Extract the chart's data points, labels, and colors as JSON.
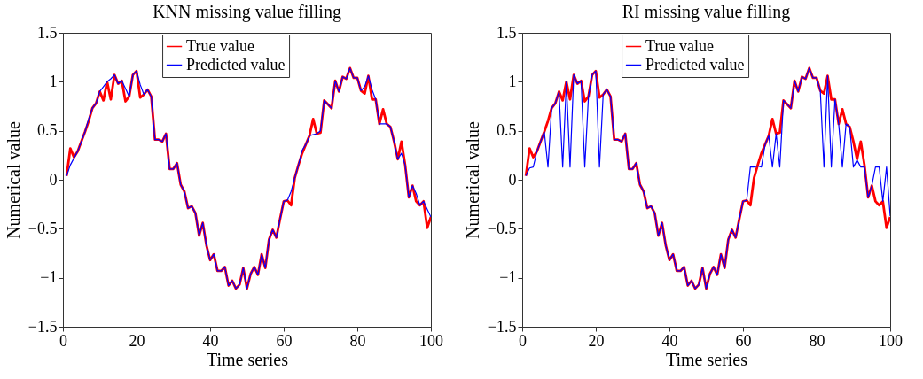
{
  "chart_data": [
    {
      "type": "line",
      "title": "KNN missing value filling",
      "xlabel": "Time series",
      "ylabel": "Numerical value",
      "xlim": [
        0,
        100
      ],
      "ylim": [
        -1.5,
        1.5
      ],
      "xticks": [
        0,
        20,
        40,
        60,
        80,
        100
      ],
      "yticks": [
        -1.5,
        -1,
        -0.5,
        0,
        0.5,
        1,
        1.5
      ],
      "legend": "top",
      "grid": false,
      "x": [
        1,
        2,
        3,
        4,
        5,
        6,
        7,
        8,
        9,
        10,
        11,
        12,
        13,
        14,
        15,
        16,
        17,
        18,
        19,
        20,
        21,
        22,
        23,
        24,
        25,
        26,
        27,
        28,
        29,
        30,
        31,
        32,
        33,
        34,
        35,
        36,
        37,
        38,
        39,
        40,
        41,
        42,
        43,
        44,
        45,
        46,
        47,
        48,
        49,
        50,
        51,
        52,
        53,
        54,
        55,
        56,
        57,
        58,
        59,
        60,
        61,
        62,
        63,
        64,
        65,
        66,
        67,
        68,
        69,
        70,
        71,
        72,
        73,
        74,
        75,
        76,
        77,
        78,
        79,
        80,
        81,
        82,
        83,
        84,
        85,
        86,
        87,
        88,
        89,
        90,
        91,
        92,
        93,
        94,
        95,
        96,
        97,
        98,
        99,
        100
      ],
      "series": [
        {
          "name": "True value",
          "color": "#ff0000",
          "values": [
            0.04,
            0.32,
            0.23,
            0.29,
            0.39,
            0.49,
            0.6,
            0.73,
            0.78,
            0.9,
            0.81,
            1.0,
            0.82,
            1.07,
            0.98,
            1.01,
            0.8,
            0.85,
            1.07,
            1.11,
            0.84,
            0.87,
            0.92,
            0.85,
            0.41,
            0.41,
            0.39,
            0.47,
            0.11,
            0.11,
            0.17,
            -0.05,
            -0.12,
            -0.29,
            -0.27,
            -0.34,
            -0.57,
            -0.44,
            -0.67,
            -0.82,
            -0.76,
            -0.93,
            -0.93,
            -0.89,
            -1.08,
            -1.03,
            -1.11,
            -1.07,
            -0.9,
            -1.11,
            -0.96,
            -0.89,
            -0.97,
            -0.76,
            -0.9,
            -0.61,
            -0.51,
            -0.59,
            -0.4,
            -0.22,
            -0.21,
            -0.26,
            0.02,
            0.15,
            0.27,
            0.36,
            0.45,
            0.62,
            0.47,
            0.48,
            0.81,
            0.77,
            0.73,
            1.01,
            0.9,
            1.05,
            1.03,
            1.14,
            1.04,
            1.04,
            0.91,
            0.88,
            1.06,
            0.82,
            0.82,
            0.57,
            0.72,
            0.57,
            0.54,
            0.39,
            0.21,
            0.39,
            0.15,
            -0.18,
            -0.06,
            -0.22,
            -0.26,
            -0.22,
            -0.49,
            -0.38
          ]
        },
        {
          "name": "Predicted value",
          "color": "#0000ff",
          "values": [
            0.04,
            0.15,
            0.22,
            0.29,
            0.39,
            0.49,
            0.62,
            0.73,
            0.78,
            0.9,
            0.95,
            1.0,
            1.03,
            1.07,
            0.98,
            1.01,
            0.93,
            0.85,
            1.07,
            1.11,
            0.97,
            0.87,
            0.92,
            0.85,
            0.41,
            0.41,
            0.39,
            0.47,
            0.11,
            0.11,
            0.17,
            -0.05,
            -0.12,
            -0.29,
            -0.27,
            -0.34,
            -0.57,
            -0.44,
            -0.67,
            -0.82,
            -0.76,
            -0.93,
            -0.93,
            -0.89,
            -1.08,
            -1.03,
            -1.11,
            -1.07,
            -0.9,
            -1.11,
            -0.96,
            -0.89,
            -0.97,
            -0.76,
            -0.9,
            -0.61,
            -0.51,
            -0.59,
            -0.4,
            -0.22,
            -0.21,
            -0.12,
            0.02,
            0.15,
            0.3,
            0.36,
            0.45,
            0.46,
            0.47,
            0.5,
            0.81,
            0.77,
            0.73,
            1.01,
            0.9,
            1.05,
            1.03,
            1.14,
            1.04,
            1.04,
            0.91,
            0.95,
            1.06,
            0.92,
            0.82,
            0.57,
            0.57,
            0.57,
            0.54,
            0.39,
            0.21,
            0.27,
            0.15,
            -0.18,
            -0.06,
            -0.14,
            -0.26,
            -0.22,
            -0.3,
            -0.38
          ]
        }
      ]
    },
    {
      "type": "line",
      "title": "RI missing value filling",
      "xlabel": "Time series",
      "ylabel": "Numerical value",
      "xlim": [
        0,
        100
      ],
      "ylim": [
        -1.5,
        1.5
      ],
      "xticks": [
        0,
        20,
        40,
        60,
        80,
        100
      ],
      "yticks": [
        -1.5,
        -1,
        -0.5,
        0,
        0.5,
        1,
        1.5
      ],
      "legend": "top",
      "grid": false,
      "x": [
        1,
        2,
        3,
        4,
        5,
        6,
        7,
        8,
        9,
        10,
        11,
        12,
        13,
        14,
        15,
        16,
        17,
        18,
        19,
        20,
        21,
        22,
        23,
        24,
        25,
        26,
        27,
        28,
        29,
        30,
        31,
        32,
        33,
        34,
        35,
        36,
        37,
        38,
        39,
        40,
        41,
        42,
        43,
        44,
        45,
        46,
        47,
        48,
        49,
        50,
        51,
        52,
        53,
        54,
        55,
        56,
        57,
        58,
        59,
        60,
        61,
        62,
        63,
        64,
        65,
        66,
        67,
        68,
        69,
        70,
        71,
        72,
        73,
        74,
        75,
        76,
        77,
        78,
        79,
        80,
        81,
        82,
        83,
        84,
        85,
        86,
        87,
        88,
        89,
        90,
        91,
        92,
        93,
        94,
        95,
        96,
        97,
        98,
        99,
        100
      ],
      "series": [
        {
          "name": "True value",
          "color": "#ff0000",
          "values": [
            0.04,
            0.32,
            0.23,
            0.29,
            0.39,
            0.49,
            0.6,
            0.73,
            0.78,
            0.9,
            0.81,
            1.0,
            0.82,
            1.07,
            0.98,
            1.01,
            0.8,
            0.85,
            1.07,
            1.11,
            0.84,
            0.87,
            0.92,
            0.85,
            0.41,
            0.41,
            0.39,
            0.47,
            0.11,
            0.11,
            0.17,
            -0.05,
            -0.12,
            -0.29,
            -0.27,
            -0.34,
            -0.57,
            -0.44,
            -0.67,
            -0.82,
            -0.76,
            -0.93,
            -0.93,
            -0.89,
            -1.08,
            -1.03,
            -1.11,
            -1.07,
            -0.9,
            -1.11,
            -0.96,
            -0.89,
            -0.97,
            -0.76,
            -0.9,
            -0.61,
            -0.51,
            -0.59,
            -0.4,
            -0.22,
            -0.21,
            -0.26,
            0.02,
            0.15,
            0.27,
            0.36,
            0.45,
            0.62,
            0.47,
            0.48,
            0.81,
            0.77,
            0.73,
            1.01,
            0.9,
            1.05,
            1.03,
            1.14,
            1.04,
            1.04,
            0.91,
            0.88,
            1.06,
            0.82,
            0.82,
            0.57,
            0.72,
            0.57,
            0.54,
            0.39,
            0.21,
            0.39,
            0.15,
            -0.18,
            -0.06,
            -0.22,
            -0.26,
            -0.22,
            -0.49,
            -0.38
          ]
        },
        {
          "name": "Predicted value",
          "color": "#0000ff",
          "values": [
            0.04,
            0.12,
            0.13,
            0.29,
            0.39,
            0.49,
            0.13,
            0.73,
            0.78,
            0.9,
            0.13,
            1.0,
            0.13,
            1.07,
            0.98,
            1.01,
            0.13,
            0.85,
            1.07,
            1.11,
            0.13,
            0.87,
            0.92,
            0.85,
            0.41,
            0.41,
            0.39,
            0.47,
            0.11,
            0.11,
            0.17,
            -0.05,
            -0.12,
            -0.29,
            -0.27,
            -0.34,
            -0.57,
            -0.44,
            -0.67,
            -0.82,
            -0.76,
            -0.93,
            -0.93,
            -0.89,
            -1.08,
            -1.03,
            -1.11,
            -1.07,
            -0.9,
            -1.11,
            -0.96,
            -0.89,
            -0.97,
            -0.76,
            -0.9,
            -0.61,
            -0.51,
            -0.59,
            -0.4,
            -0.22,
            -0.21,
            0.13,
            0.13,
            0.14,
            0.13,
            0.36,
            0.45,
            0.13,
            0.47,
            0.13,
            0.81,
            0.77,
            0.73,
            1.01,
            0.9,
            1.05,
            1.03,
            1.14,
            1.04,
            1.04,
            0.91,
            0.13,
            1.06,
            0.13,
            0.82,
            0.57,
            0.13,
            0.57,
            0.54,
            0.13,
            0.2,
            0.13,
            0.13,
            -0.18,
            -0.06,
            0.13,
            0.13,
            -0.22,
            0.13,
            -0.37
          ]
        }
      ]
    }
  ]
}
